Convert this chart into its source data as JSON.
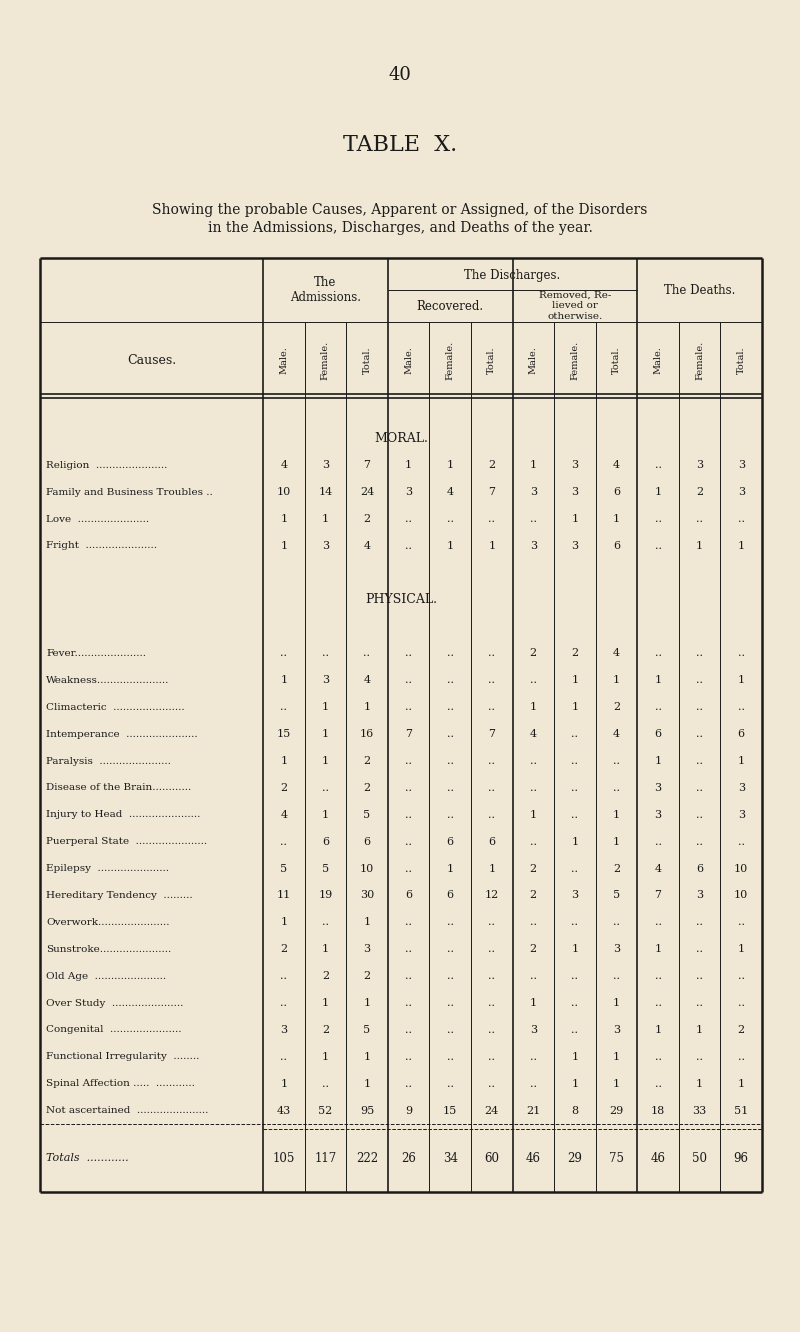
{
  "page_number": "40",
  "title": "TABLE  X.",
  "subtitle1": "Showing the probable Causes, Apparent or Assigned, of the Disorders",
  "subtitle2": "in the Admissions, Discharges, and Deaths of the year.",
  "bg_color": "#f0e8d5",
  "text_color": "#1a1a1a",
  "rows": [
    {
      "cause": "Religion  ......................",
      "section": "MORAL",
      "adm_m": "4",
      "adm_f": "3",
      "adm_t": "7",
      "rec_m": "1",
      "rec_f": "1",
      "rec_t": "2",
      "rem_m": "1",
      "rem_f": "3",
      "rem_t": "4",
      "dth_m": "..",
      "dth_f": "3",
      "dth_t": "3"
    },
    {
      "cause": "Family and Business Troubles ..",
      "section": "MORAL",
      "adm_m": "10",
      "adm_f": "14",
      "adm_t": "24",
      "rec_m": "3",
      "rec_f": "4",
      "rec_t": "7",
      "rem_m": "3",
      "rem_f": "3",
      "rem_t": "6",
      "dth_m": "1",
      "dth_f": "2",
      "dth_t": "3"
    },
    {
      "cause": "Love  ......................",
      "section": "MORAL",
      "adm_m": "1",
      "adm_f": "1",
      "adm_t": "2",
      "rec_m": "..",
      "rec_f": "..",
      "rec_t": "..",
      "rem_m": "..",
      "rem_f": "1",
      "rem_t": "1",
      "dth_m": "..",
      "dth_f": "..",
      "dth_t": ".."
    },
    {
      "cause": "Fright  ......................",
      "section": "MORAL",
      "adm_m": "1",
      "adm_f": "3",
      "adm_t": "4",
      "rec_m": "..",
      "rec_f": "1",
      "rec_t": "1",
      "rem_m": "3",
      "rem_f": "3",
      "rem_t": "6",
      "dth_m": "..",
      "dth_f": "1",
      "dth_t": "1"
    },
    {
      "cause": "Fever......................",
      "section": "PHYSICAL",
      "adm_m": "..",
      "adm_f": "..",
      "adm_t": "..",
      "rec_m": "..",
      "rec_f": "..",
      "rec_t": "..",
      "rem_m": "2",
      "rem_f": "2",
      "rem_t": "4",
      "dth_m": "..",
      "dth_f": "..",
      "dth_t": ".."
    },
    {
      "cause": "Weakness......................",
      "section": "PHYSICAL",
      "adm_m": "1",
      "adm_f": "3",
      "adm_t": "4",
      "rec_m": "..",
      "rec_f": "..",
      "rec_t": "..",
      "rem_m": "..",
      "rem_f": "1",
      "rem_t": "1",
      "dth_m": "1",
      "dth_f": "..",
      "dth_t": "1"
    },
    {
      "cause": "Climacteric  ......................",
      "section": "PHYSICAL",
      "adm_m": "..",
      "adm_f": "1",
      "adm_t": "1",
      "rec_m": "..",
      "rec_f": "..",
      "rec_t": "..",
      "rem_m": "1",
      "rem_f": "1",
      "rem_t": "2",
      "dth_m": "..",
      "dth_f": "..",
      "dth_t": ".."
    },
    {
      "cause": "Intemperance  ......................",
      "section": "PHYSICAL",
      "adm_m": "15",
      "adm_f": "1",
      "adm_t": "16",
      "rec_m": "7",
      "rec_f": "..",
      "rec_t": "7",
      "rem_m": "4",
      "rem_f": "..",
      "rem_t": "4",
      "dth_m": "6",
      "dth_f": "..",
      "dth_t": "6"
    },
    {
      "cause": "Paralysis  ......................",
      "section": "PHYSICAL",
      "adm_m": "1",
      "adm_f": "1",
      "adm_t": "2",
      "rec_m": "..",
      "rec_f": "..",
      "rec_t": "..",
      "rem_m": "..",
      "rem_f": "..",
      "rem_t": "..",
      "dth_m": "1",
      "dth_f": "..",
      "dth_t": "1"
    },
    {
      "cause": "Disease of the Brain............",
      "section": "PHYSICAL",
      "adm_m": "2",
      "adm_f": "..",
      "adm_t": "2",
      "rec_m": "..",
      "rec_f": "..",
      "rec_t": "..",
      "rem_m": "..",
      "rem_f": "..",
      "rem_t": "..",
      "dth_m": "3",
      "dth_f": "..",
      "dth_t": "3"
    },
    {
      "cause": "Injury to Head  ......................",
      "section": "PHYSICAL",
      "adm_m": "4",
      "adm_f": "1",
      "adm_t": "5",
      "rec_m": "..",
      "rec_f": "..",
      "rec_t": "..",
      "rem_m": "1",
      "rem_f": "..",
      "rem_t": "1",
      "dth_m": "3",
      "dth_f": "..",
      "dth_t": "3"
    },
    {
      "cause": "Puerperal State  ......................",
      "section": "PHYSICAL",
      "adm_m": "..",
      "adm_f": "6",
      "adm_t": "6",
      "rec_m": "..",
      "rec_f": "6",
      "rec_t": "6",
      "rem_m": "..",
      "rem_f": "1",
      "rem_t": "1",
      "dth_m": "..",
      "dth_f": "..",
      "dth_t": ".."
    },
    {
      "cause": "Epilepsy  ......................",
      "section": "PHYSICAL",
      "adm_m": "5",
      "adm_f": "5",
      "adm_t": "10",
      "rec_m": "..",
      "rec_f": "1",
      "rec_t": "1",
      "rem_m": "2",
      "rem_f": "..",
      "rem_t": "2",
      "dth_m": "4",
      "dth_f": "6",
      "dth_t": "10"
    },
    {
      "cause": "Hereditary Tendency  .........",
      "section": "PHYSICAL",
      "adm_m": "11",
      "adm_f": "19",
      "adm_t": "30",
      "rec_m": "6",
      "rec_f": "6",
      "rec_t": "12",
      "rem_m": "2",
      "rem_f": "3",
      "rem_t": "5",
      "dth_m": "7",
      "dth_f": "3",
      "dth_t": "10"
    },
    {
      "cause": "Overwork......................",
      "section": "PHYSICAL",
      "adm_m": "1",
      "adm_f": "..",
      "adm_t": "1",
      "rec_m": "..",
      "rec_f": "..",
      "rec_t": "..",
      "rem_m": "..",
      "rem_f": "..",
      "rem_t": "..",
      "dth_m": "..",
      "dth_f": "..",
      "dth_t": ".."
    },
    {
      "cause": "Sunstroke......................",
      "section": "PHYSICAL",
      "adm_m": "2",
      "adm_f": "1",
      "adm_t": "3",
      "rec_m": "..",
      "rec_f": "..",
      "rec_t": "..",
      "rem_m": "2",
      "rem_f": "1",
      "rem_t": "3",
      "dth_m": "1",
      "dth_f": "..",
      "dth_t": "1"
    },
    {
      "cause": "Old Age  ......................",
      "section": "PHYSICAL",
      "adm_m": "..",
      "adm_f": "2",
      "adm_t": "2",
      "rec_m": "..",
      "rec_f": "..",
      "rec_t": "..",
      "rem_m": "..",
      "rem_f": "..",
      "rem_t": "..",
      "dth_m": "..",
      "dth_f": "..",
      "dth_t": ".."
    },
    {
      "cause": "Over Study  ......................",
      "section": "PHYSICAL",
      "adm_m": "..",
      "adm_f": "1",
      "adm_t": "1",
      "rec_m": "..",
      "rec_f": "..",
      "rec_t": "..",
      "rem_m": "1",
      "rem_f": "..",
      "rem_t": "1",
      "dth_m": "..",
      "dth_f": "..",
      "dth_t": ".."
    },
    {
      "cause": "Congenital  ......................",
      "section": "PHYSICAL",
      "adm_m": "3",
      "adm_f": "2",
      "adm_t": "5",
      "rec_m": "..",
      "rec_f": "..",
      "rec_t": "..",
      "rem_m": "3",
      "rem_f": "..",
      "rem_t": "3",
      "dth_m": "1",
      "dth_f": "1",
      "dth_t": "2"
    },
    {
      "cause": "Functional Irregularity  ........",
      "section": "PHYSICAL",
      "adm_m": "..",
      "adm_f": "1",
      "adm_t": "1",
      "rec_m": "..",
      "rec_f": "..",
      "rec_t": "..",
      "rem_m": "..",
      "rem_f": "1",
      "rem_t": "1",
      "dth_m": "..",
      "dth_f": "..",
      "dth_t": ".."
    },
    {
      "cause": "Spinal Affection .....  ............",
      "section": "PHYSICAL",
      "adm_m": "1",
      "adm_f": "..",
      "adm_t": "1",
      "rec_m": "..",
      "rec_f": "..",
      "rec_t": "..",
      "rem_m": "..",
      "rem_f": "1",
      "rem_t": "1",
      "dth_m": "..",
      "dth_f": "1",
      "dth_t": "1"
    },
    {
      "cause": "Not ascertained  ......................",
      "section": "PHYSICAL",
      "adm_m": "43",
      "adm_f": "52",
      "adm_t": "95",
      "rec_m": "9",
      "rec_f": "15",
      "rec_t": "24",
      "rem_m": "21",
      "rem_f": "8",
      "rem_t": "29",
      "dth_m": "18",
      "dth_f": "33",
      "dth_t": "51"
    }
  ],
  "totals": {
    "adm_m": "105",
    "adm_f": "117",
    "adm_t": "222",
    "rec_m": "26",
    "rec_f": "34",
    "rec_t": "60",
    "rem_m": "46",
    "rem_f": "29",
    "rem_t": "75",
    "dth_m": "46",
    "dth_f": "50",
    "dth_t": "96"
  }
}
